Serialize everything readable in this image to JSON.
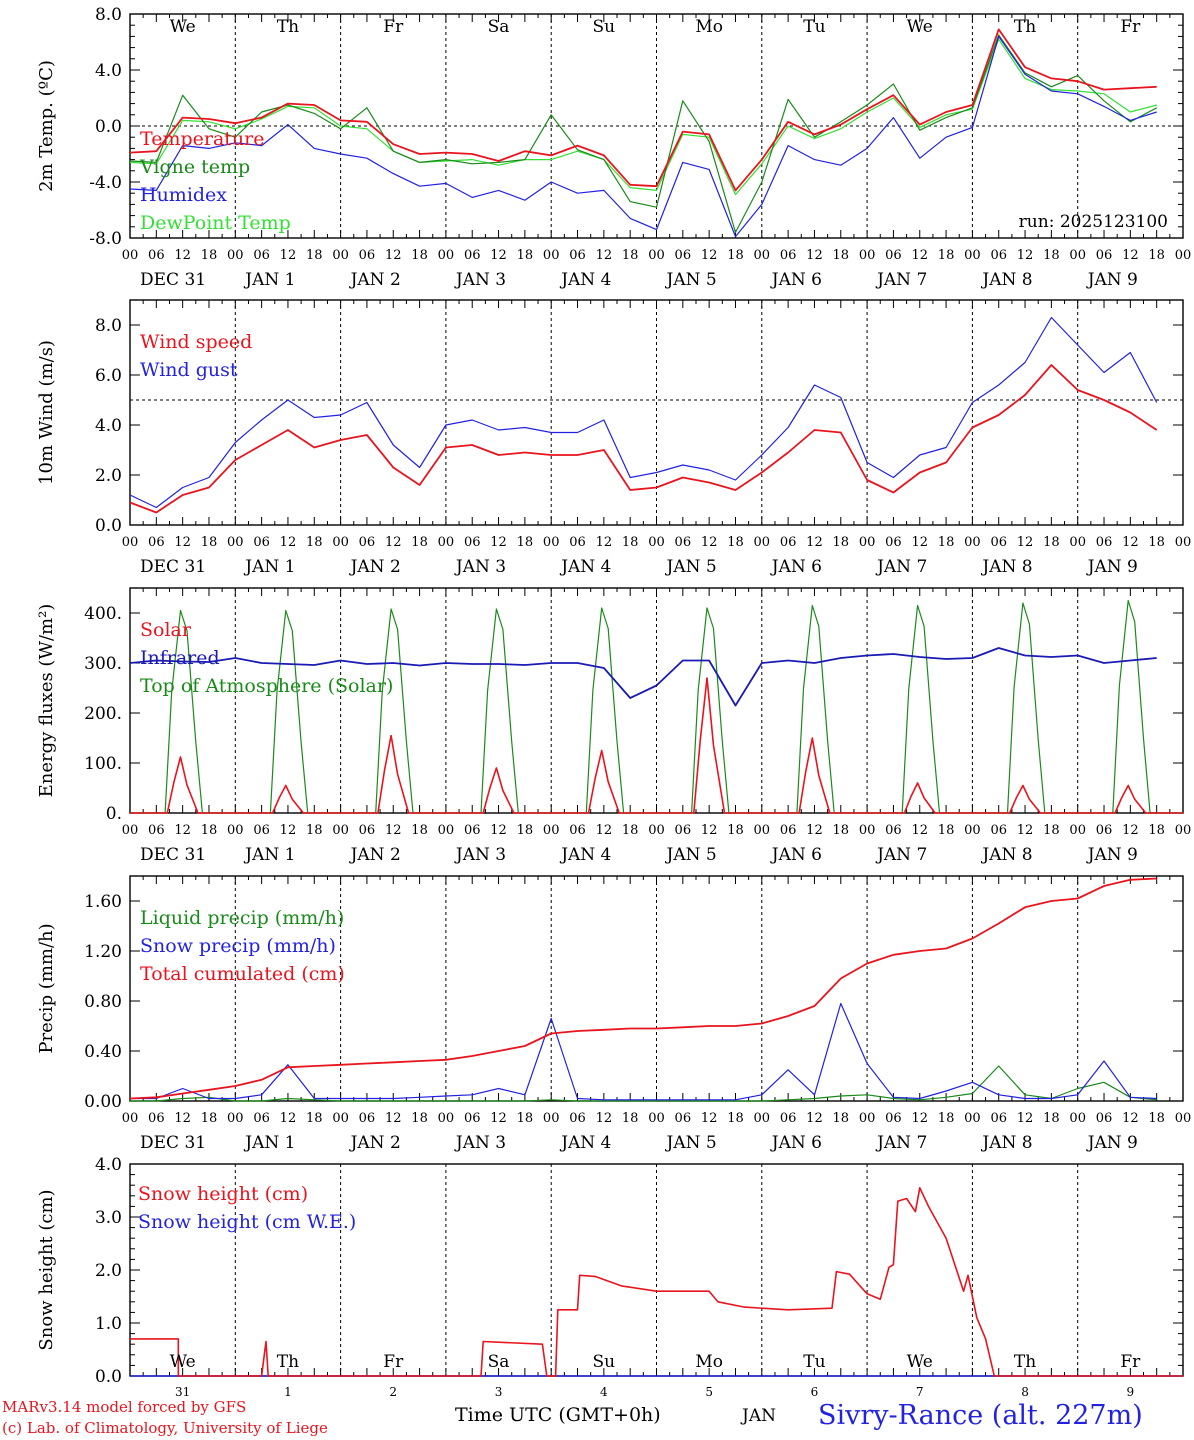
{
  "colors": {
    "red": "#e8141e",
    "green": "#1a8a1a",
    "blue": "#2222e0",
    "lightgreen": "#33e033",
    "darkblue": "#1a1ab4"
  },
  "time_axis": {
    "hour_labels": [
      "00",
      "06",
      "12",
      "18"
    ],
    "date_labels": [
      "DEC 31",
      "JAN 1",
      "JAN 2",
      "JAN 3",
      "JAN 4",
      "JAN 5",
      "JAN 6",
      "JAN 7",
      "JAN 8",
      "JAN 9"
    ],
    "weekdays": [
      "We",
      "Th",
      "Fr",
      "Sa",
      "Su",
      "Mo",
      "Tu",
      "We",
      "Th",
      "Fr"
    ],
    "weekend_days": [
      "Sa",
      "Su"
    ],
    "bottom_day_numbers": [
      "31",
      "1",
      "2",
      "3",
      "4",
      "5",
      "6",
      "7",
      "8",
      "9"
    ],
    "xlabel": "Time UTC (GMT+0h)",
    "month": "JAN"
  },
  "footer": {
    "model": "MARv3.14 model forced by GFS",
    "credit": "(c) Lab. of Climatology, University of Liege",
    "station": "Sivry-Rance (alt. 227m)"
  },
  "chart_data": [
    {
      "id": "temperature",
      "type": "line",
      "ylabel": "2m Temp. (ºC)",
      "ylim": [
        -8,
        8
      ],
      "yticks": [
        "-8.0",
        "-4.0",
        "0.0",
        "4.0",
        "8.0"
      ],
      "reference_line": 0,
      "annotation": "run: 2025123100",
      "x_hours": [
        0,
        6,
        12,
        18,
        24,
        30,
        36,
        42,
        48,
        54,
        60,
        66,
        72,
        78,
        84,
        90,
        96,
        102,
        108,
        114,
        120,
        126,
        132,
        138,
        144,
        150,
        156,
        162,
        168,
        174,
        180,
        186,
        192,
        198,
        204,
        210,
        216,
        222,
        228,
        234
      ],
      "series": [
        {
          "name": "Temperature",
          "color": "red",
          "values": [
            -1.9,
            -1.8,
            0.6,
            0.5,
            0.2,
            0.6,
            1.6,
            1.5,
            0.4,
            0.3,
            -1.3,
            -2.0,
            -1.9,
            -2.0,
            -2.5,
            -1.8,
            -2.1,
            -1.4,
            -2.1,
            -4.2,
            -4.3,
            -0.4,
            -0.6,
            -4.6,
            -2.4,
            0.3,
            -0.6,
            0.1,
            1.2,
            2.2,
            0.1,
            1.0,
            1.5,
            6.9,
            4.2,
            3.4,
            3.2,
            2.6,
            2.7,
            2.8
          ]
        },
        {
          "name": "Vigne temp",
          "color": "green",
          "values": [
            -2.5,
            -2.6,
            2.2,
            -0.2,
            -0.8,
            1.0,
            1.5,
            0.9,
            -0.2,
            1.3,
            -1.8,
            -2.6,
            -2.4,
            -2.7,
            -2.6,
            -2.4,
            0.8,
            -1.7,
            -2.4,
            -5.4,
            -5.8,
            1.8,
            -1.1,
            -7.6,
            -4.0,
            1.9,
            -0.8,
            0.3,
            1.5,
            3.0,
            -0.3,
            0.6,
            1.3,
            6.5,
            3.8,
            2.8,
            3.6,
            1.8,
            0.3,
            1.3
          ]
        },
        {
          "name": "Humidex",
          "color": "blue",
          "values": [
            -4.5,
            -4.6,
            -1.4,
            -1.6,
            -1.2,
            -1.4,
            0.1,
            -1.6,
            -2.0,
            -2.3,
            -3.4,
            -4.3,
            -4.1,
            -5.1,
            -4.6,
            -5.3,
            -4.0,
            -4.8,
            -4.6,
            -6.6,
            -7.4,
            -2.6,
            -3.1,
            -7.9,
            -5.6,
            -1.4,
            -2.4,
            -2.8,
            -1.6,
            0.6,
            -2.3,
            -0.8,
            -0.1,
            6.4,
            3.7,
            2.5,
            2.3,
            1.4,
            0.4,
            1.0
          ]
        },
        {
          "name": "DewPoint Temp",
          "color": "lightgreen",
          "values": [
            -2.6,
            -2.7,
            0.4,
            0.3,
            -0.2,
            0.5,
            1.4,
            1.3,
            0.0,
            -0.2,
            -1.8,
            -2.6,
            -2.5,
            -2.4,
            -2.8,
            -2.4,
            -2.4,
            -1.8,
            -2.4,
            -4.4,
            -4.6,
            -0.6,
            -0.8,
            -4.9,
            -2.7,
            0.0,
            -0.9,
            -0.2,
            1.0,
            2.0,
            -0.1,
            0.8,
            1.2,
            6.2,
            3.4,
            2.6,
            2.5,
            2.3,
            1.0,
            1.5
          ]
        }
      ]
    },
    {
      "id": "wind",
      "type": "line",
      "ylabel": "10m Wind (m/s)",
      "ylim": [
        0,
        9
      ],
      "yticks": [
        "0.0",
        "2.0",
        "4.0",
        "6.0",
        "8.0"
      ],
      "reference_line": 5,
      "x_hours": [
        0,
        6,
        12,
        18,
        24,
        30,
        36,
        42,
        48,
        54,
        60,
        66,
        72,
        78,
        84,
        90,
        96,
        102,
        108,
        114,
        120,
        126,
        132,
        138,
        144,
        150,
        156,
        162,
        168,
        174,
        180,
        186,
        192,
        198,
        204,
        210,
        216,
        222,
        228,
        234
      ],
      "series": [
        {
          "name": "Wind speed",
          "color": "red",
          "values": [
            0.9,
            0.5,
            1.2,
            1.5,
            2.6,
            3.2,
            3.8,
            3.1,
            3.4,
            3.6,
            2.3,
            1.6,
            3.1,
            3.2,
            2.8,
            2.9,
            2.8,
            2.8,
            3.0,
            1.4,
            1.5,
            1.9,
            1.7,
            1.4,
            2.1,
            2.9,
            3.8,
            3.7,
            1.8,
            1.3,
            2.1,
            2.5,
            3.9,
            4.4,
            5.2,
            6.4,
            5.4,
            5.0,
            4.5,
            3.8
          ]
        },
        {
          "name": "Wind gust",
          "color": "blue",
          "values": [
            1.2,
            0.7,
            1.5,
            1.9,
            3.3,
            4.2,
            5.0,
            4.3,
            4.4,
            4.9,
            3.2,
            2.3,
            4.0,
            4.2,
            3.8,
            3.9,
            3.7,
            3.7,
            4.2,
            1.9,
            2.1,
            2.4,
            2.2,
            1.8,
            2.8,
            3.9,
            5.6,
            5.1,
            2.5,
            1.9,
            2.8,
            3.1,
            4.9,
            5.6,
            6.5,
            8.3,
            7.2,
            6.1,
            6.9,
            4.9
          ]
        }
      ]
    },
    {
      "id": "energy",
      "type": "line",
      "ylabel": "Energy fluxes (W/m²)",
      "ylim": [
        0,
        450
      ],
      "yticks": [
        "0.",
        "100.",
        "200.",
        "300.",
        "400."
      ],
      "days_peak_hour": 12,
      "series": [
        {
          "name": "Solar",
          "color": "red",
          "daily_peaks": [
            112,
            55,
            155,
            90,
            125,
            270,
            150,
            60,
            55,
            55
          ]
        },
        {
          "name": "Infrared",
          "color": "darkblue",
          "values": [
            300,
            305,
            303,
            302,
            310,
            300,
            298,
            296,
            305,
            298,
            300,
            295,
            300,
            298,
            298,
            296,
            300,
            300,
            290,
            230,
            255,
            305,
            305,
            215,
            300,
            305,
            300,
            310,
            315,
            318,
            312,
            308,
            310,
            330,
            315,
            312,
            315,
            300,
            305,
            310
          ]
        },
        {
          "name": "Top of Atmosphere (Solar)",
          "color": "green",
          "daily_peaks": [
            405,
            405,
            408,
            408,
            410,
            410,
            415,
            415,
            420,
            425
          ]
        }
      ]
    },
    {
      "id": "precip",
      "type": "line",
      "ylabel": "Precip (mm/h)",
      "ylim": [
        0,
        1.8
      ],
      "yticks": [
        "0.00",
        "0.40",
        "0.80",
        "1.20",
        "1.60"
      ],
      "x_hours": [
        0,
        6,
        12,
        18,
        24,
        30,
        36,
        42,
        48,
        54,
        60,
        66,
        72,
        78,
        84,
        90,
        96,
        102,
        108,
        114,
        120,
        126,
        132,
        138,
        144,
        150,
        156,
        162,
        168,
        174,
        180,
        186,
        192,
        198,
        204,
        210,
        216,
        222,
        228,
        234
      ],
      "series": [
        {
          "name": "Liquid precip (mm/h)",
          "color": "green",
          "values": [
            0,
            0,
            0.02,
            0.03,
            0,
            0,
            0.02,
            0.01,
            0,
            0,
            0,
            0,
            0,
            0,
            0,
            0,
            0.01,
            0,
            0,
            0,
            0,
            0,
            0,
            0,
            0,
            0.01,
            0.02,
            0.04,
            0.05,
            0.02,
            0.01,
            0.03,
            0.06,
            0.28,
            0.05,
            0.02,
            0.1,
            0.15,
            0.03,
            0.01
          ]
        },
        {
          "name": "Snow precip (mm/h)",
          "color": "blue",
          "values": [
            0.02,
            0.02,
            0.1,
            0.02,
            0.02,
            0.05,
            0.29,
            0.02,
            0.02,
            0.02,
            0.02,
            0.03,
            0.04,
            0.05,
            0.1,
            0.05,
            0.66,
            0.02,
            0.01,
            0.01,
            0.01,
            0.01,
            0.01,
            0.01,
            0.05,
            0.25,
            0.05,
            0.78,
            0.3,
            0.03,
            0.02,
            0.08,
            0.15,
            0.05,
            0.02,
            0.02,
            0.05,
            0.32,
            0.03,
            0.02
          ]
        },
        {
          "name": "Total cumulated (cm)",
          "color": "red",
          "values": [
            0.02,
            0.03,
            0.06,
            0.09,
            0.12,
            0.17,
            0.27,
            0.28,
            0.29,
            0.3,
            0.31,
            0.32,
            0.33,
            0.36,
            0.4,
            0.44,
            0.54,
            0.56,
            0.57,
            0.58,
            0.58,
            0.59,
            0.6,
            0.6,
            0.62,
            0.68,
            0.76,
            0.98,
            1.1,
            1.17,
            1.2,
            1.22,
            1.3,
            1.42,
            1.55,
            1.6,
            1.62,
            1.72,
            1.77,
            1.78
          ]
        }
      ]
    },
    {
      "id": "snow",
      "type": "line",
      "ylabel": "Snow height (cm)",
      "ylim": [
        0,
        4
      ],
      "yticks": [
        "0.0",
        "1.0",
        "2.0",
        "3.0",
        "4.0"
      ],
      "series": [
        {
          "name": "Snow height (cm)",
          "color": "red",
          "points": [
            [
              0,
              0.7
            ],
            [
              11,
              0.7
            ],
            [
              11,
              0
            ],
            [
              30,
              0
            ],
            [
              31,
              0.65
            ],
            [
              31.5,
              0
            ],
            [
              80,
              0
            ],
            [
              80.5,
              0.65
            ],
            [
              94,
              0.6
            ],
            [
              95,
              0
            ],
            [
              97,
              0
            ],
            [
              97.5,
              1.25
            ],
            [
              102,
              1.25
            ],
            [
              102.5,
              1.9
            ],
            [
              106,
              1.88
            ],
            [
              112,
              1.7
            ],
            [
              120,
              1.6
            ],
            [
              128,
              1.6
            ],
            [
              132,
              1.6
            ],
            [
              134,
              1.4
            ],
            [
              140,
              1.3
            ],
            [
              150,
              1.25
            ],
            [
              160,
              1.28
            ],
            [
              161,
              1.97
            ],
            [
              164,
              1.92
            ],
            [
              168,
              1.55
            ],
            [
              171,
              1.45
            ],
            [
              173,
              2.05
            ],
            [
              174,
              2.1
            ],
            [
              175,
              3.3
            ],
            [
              177,
              3.35
            ],
            [
              179,
              3.1
            ],
            [
              180,
              3.55
            ],
            [
              182,
              3.2
            ],
            [
              186,
              2.6
            ],
            [
              190,
              1.6
            ],
            [
              191,
              1.9
            ],
            [
              193,
              1.1
            ],
            [
              195,
              0.7
            ],
            [
              197,
              0
            ],
            [
              240,
              0
            ]
          ]
        },
        {
          "name": "Snow height (cm W.E.)",
          "color": "blue",
          "points": [
            [
              0,
              0
            ],
            [
              240,
              0
            ]
          ]
        }
      ]
    }
  ]
}
